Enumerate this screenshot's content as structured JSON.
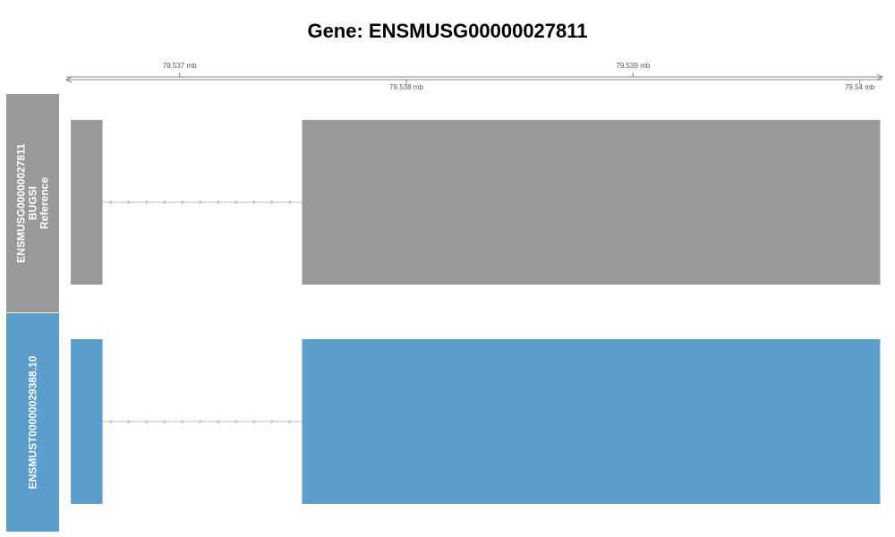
{
  "title": "Gene: ENSMUSG00000027811",
  "axis": {
    "range_mb": [
      79.5365,
      79.5401
    ],
    "ticks": [
      {
        "value": 79.537,
        "label": "79.537 mb",
        "side": "top"
      },
      {
        "value": 79.538,
        "label": "79.538 mb",
        "side": "bottom"
      },
      {
        "value": 79.539,
        "label": "79.539 mb",
        "side": "top"
      },
      {
        "value": 79.54,
        "label": "79.54 mb",
        "side": "bottom"
      }
    ]
  },
  "tracks": [
    {
      "label_lines": [
        "ENSMUSG00000027811",
        "BUGSI",
        "Reference"
      ],
      "color": "#999999",
      "exons_mb": [
        [
          79.53652,
          79.53666
        ],
        [
          79.53754,
          79.54009
        ]
      ]
    },
    {
      "label_lines": [
        "ENSMUST00000029388.10"
      ],
      "color": "#5b9ecb",
      "exons_mb": [
        [
          79.53652,
          79.53666
        ],
        [
          79.53754,
          79.54009
        ]
      ]
    }
  ],
  "colors": {
    "axis": "#888888",
    "intron": "#bbbbbb"
  }
}
